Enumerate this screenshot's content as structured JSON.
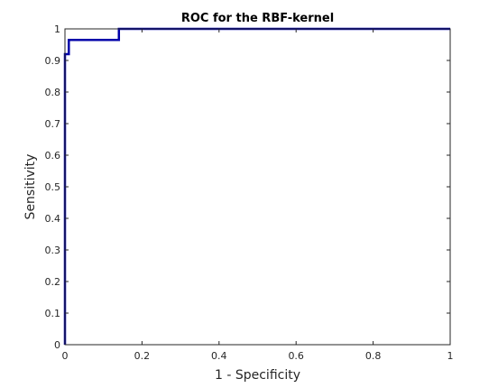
{
  "chart_data": {
    "type": "line",
    "title": "ROC for the RBF-kernel",
    "xlabel": "1 - Specificity",
    "ylabel": "Sensitivity",
    "xlim": [
      0,
      1
    ],
    "ylim": [
      0,
      1
    ],
    "xticks": [
      "0",
      "0.2",
      "0.4",
      "0.6",
      "0.8",
      "1"
    ],
    "yticks": [
      "0",
      "0.1",
      "0.2",
      "0.3",
      "0.4",
      "0.5",
      "0.6",
      "0.7",
      "0.8",
      "0.9",
      "1"
    ],
    "grid": false,
    "series": [
      {
        "color": "#0000aa",
        "x": [
          0,
          0,
          0.01,
          0.01,
          0.14,
          0.14,
          1
        ],
        "y": [
          0,
          0.92,
          0.92,
          0.965,
          0.965,
          1,
          1
        ]
      }
    ],
    "reference_line": {
      "color": "#000000",
      "x": [
        0,
        0,
        0.01,
        0.01,
        0.14,
        0.14,
        1
      ],
      "y": [
        0,
        0.92,
        0.92,
        0.965,
        0.965,
        1,
        1
      ]
    }
  }
}
